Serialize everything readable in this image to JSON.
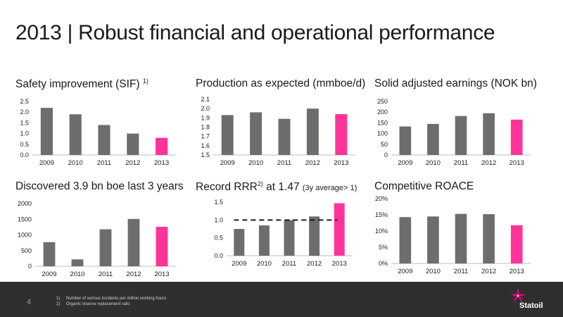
{
  "title": "2013 | Robust financial and operational performance",
  "colors": {
    "bar": "#6d6d6d",
    "highlight": "#ff3399",
    "footer": "#2f2f2f"
  },
  "panels": [
    {
      "title": "Safety improvement (SIF)",
      "sup": "1)",
      "note": ""
    },
    {
      "title": "Production as expected (mmboe/d)",
      "sup": "",
      "note": ""
    },
    {
      "title": "Solid adjusted earnings (NOK bn)",
      "sup": "",
      "note": ""
    },
    {
      "title": "Discovered 3.9 bn boe last 3 years",
      "sup": "",
      "note": ""
    },
    {
      "title": "Record RRR",
      "sup": "2)",
      "after": " at 1.47 ",
      "note": "(3y average> 1)"
    },
    {
      "title": "Competitive ROACE",
      "sup": "",
      "note": ""
    }
  ],
  "chart_data": [
    {
      "type": "bar",
      "categories": [
        "2009",
        "2010",
        "2011",
        "2012",
        "2013"
      ],
      "values": [
        2.2,
        1.9,
        1.4,
        1.0,
        0.8
      ],
      "ylim": [
        0,
        2.5
      ],
      "yticks": [
        "0.0",
        "0.5",
        "1.0",
        "1.5",
        "2.0",
        "2.5"
      ],
      "highlight_index": 4
    },
    {
      "type": "bar",
      "categories": [
        "2009",
        "2010",
        "2011",
        "2012",
        "2013"
      ],
      "values": [
        1.93,
        1.96,
        1.89,
        2.0,
        1.94
      ],
      "ylim": [
        1.5,
        2.1
      ],
      "yticks": [
        "1.5",
        "1.6",
        "1.7",
        "1.8",
        "1.9",
        "2.0",
        "2.1"
      ],
      "highlight_index": 4
    },
    {
      "type": "bar",
      "categories": [
        "2009",
        "2010",
        "2011",
        "2012",
        "2013"
      ],
      "values": [
        133,
        145,
        182,
        195,
        165
      ],
      "ylim": [
        0,
        250
      ],
      "yticks": [
        "0",
        "50",
        "100",
        "150",
        "200",
        "250"
      ],
      "highlight_index": 4
    },
    {
      "type": "bar",
      "categories": [
        "2009",
        "2010",
        "2011",
        "2012",
        "2013"
      ],
      "values": [
        770,
        220,
        1180,
        1510,
        1260
      ],
      "ylim": [
        0,
        2000
      ],
      "yticks": [
        "0",
        "500",
        "1000",
        "1500",
        "2000"
      ],
      "highlight_index": 4
    },
    {
      "type": "bar",
      "categories": [
        "2009",
        "2010",
        "2011",
        "2012",
        "2013"
      ],
      "values": [
        0.75,
        0.85,
        1.0,
        1.1,
        1.47
      ],
      "ylim": [
        0,
        1.5
      ],
      "yticks": [
        "0.0",
        "0.5",
        "1.0",
        "1.5"
      ],
      "highlight_index": 4,
      "reference_line": 1.0
    },
    {
      "type": "bar",
      "categories": [
        "2009",
        "2010",
        "2011",
        "2012",
        "2013"
      ],
      "values": [
        14.3,
        14.5,
        15.3,
        15.2,
        11.8
      ],
      "ylim": [
        0,
        20
      ],
      "yticks": [
        "0%",
        "5%",
        "10%",
        "15%",
        "20%"
      ],
      "highlight_index": 4
    }
  ],
  "footer": {
    "page": "4",
    "notes": [
      {
        "n": "1)",
        "text": "Number of serious incidents per million working hours"
      },
      {
        "n": "2)",
        "text": "Organic reserve replacement ratio"
      }
    ],
    "logo_text": "Statoil"
  }
}
